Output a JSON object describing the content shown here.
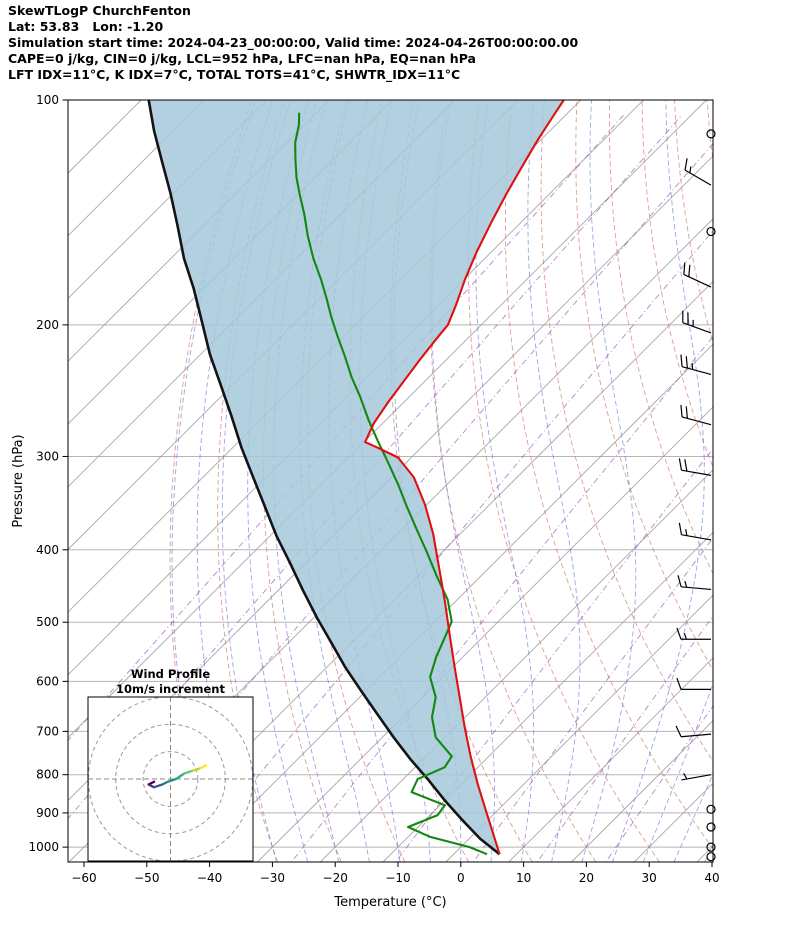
{
  "header": {
    "line1": "SkewTLogP ChurchFenton",
    "line2": "Lat: 53.83   Lon: -1.20",
    "line3": "Simulation start time: 2024-04-23_00:00:00, Valid time: 2024-04-26T00:00:00.00",
    "line4": "CAPE=0 j/kg, CIN=0 j/kg, LCL=952 hPa, LFC=nan hPa, EQ=nan hPa",
    "line5": "LFT IDX=11°C, K IDX=7°C, TOTAL TOTS=41°C, SHWTR_IDX=11°C"
  },
  "chart_data": {
    "type": "line",
    "subtype": "skewt-logp-sounding",
    "title": "SkewTLogP ChurchFenton",
    "xlabel": "Temperature (°C)",
    "ylabel": "Pressure (hPa)",
    "x_ticks": [
      -60,
      -50,
      -40,
      -30,
      -20,
      -10,
      0,
      10,
      20,
      30,
      40
    ],
    "x_tick_labels": [
      "−60",
      "−50",
      "−40",
      "−30",
      "−20",
      "−10",
      "0",
      "10",
      "20",
      "30",
      "40"
    ],
    "p_ticks": [
      100,
      200,
      300,
      400,
      500,
      600,
      700,
      800,
      900,
      1000
    ],
    "p_range": [
      100,
      1047
    ],
    "skew_deg_per_decade": 119.1,
    "isotherm_step": 10,
    "temperature_profile": [
      [
        1022,
        7.3
      ],
      [
        955,
        2.7
      ],
      [
        890,
        -2.1
      ],
      [
        824,
        -7.3
      ],
      [
        756,
        -12.9
      ],
      [
        691,
        -18.5
      ],
      [
        634,
        -23.7
      ],
      [
        575,
        -29.6
      ],
      [
        519,
        -35.7
      ],
      [
        469,
        -41.7
      ],
      [
        422,
        -48.1
      ],
      [
        381,
        -54.3
      ],
      [
        348,
        -60.3
      ],
      [
        320,
        -66.4
      ],
      [
        301,
        -72.1
      ],
      [
        292,
        -76.9
      ],
      [
        287,
        -79.8
      ],
      [
        271,
        -81.4
      ],
      [
        254,
        -82.5
      ],
      [
        237,
        -83.4
      ],
      [
        223,
        -84.2
      ],
      [
        209,
        -84.9
      ],
      [
        200,
        -85.3
      ],
      [
        188,
        -87.2
      ],
      [
        174,
        -89.8
      ],
      [
        160,
        -92.3
      ],
      [
        146,
        -94.7
      ],
      [
        134,
        -96.8
      ],
      [
        123,
        -98.7
      ],
      [
        113,
        -100.5
      ],
      [
        104,
        -102.0
      ],
      [
        100,
        -102.7
      ]
    ],
    "dewpoint_profile": [
      [
        1022,
        5.3
      ],
      [
        1000,
        1.4
      ],
      [
        969,
        -6.5
      ],
      [
        940,
        -11.6
      ],
      [
        906,
        -8.8
      ],
      [
        879,
        -9.2
      ],
      [
        844,
        -16.6
      ],
      [
        811,
        -17.7
      ],
      [
        782,
        -15.3
      ],
      [
        756,
        -15.9
      ],
      [
        713,
        -21.5
      ],
      [
        670,
        -25.3
      ],
      [
        630,
        -27.9
      ],
      [
        592,
        -32.0
      ],
      [
        557,
        -34.2
      ],
      [
        527,
        -35.8
      ],
      [
        499,
        -37.4
      ],
      [
        466,
        -41.6
      ],
      [
        434,
        -47.0
      ],
      [
        403,
        -52.4
      ],
      [
        376,
        -57.6
      ],
      [
        350,
        -62.9
      ],
      [
        327,
        -67.8
      ],
      [
        306,
        -72.8
      ],
      [
        287,
        -77.7
      ],
      [
        268,
        -82.8
      ],
      [
        250,
        -87.7
      ],
      [
        235,
        -92.3
      ],
      [
        220,
        -96.8
      ],
      [
        207,
        -101.1
      ],
      [
        195,
        -105.2
      ],
      [
        185,
        -108.6
      ],
      [
        174,
        -112.7
      ],
      [
        163,
        -117.3
      ],
      [
        152,
        -121.8
      ],
      [
        142,
        -125.9
      ],
      [
        134,
        -129.6
      ],
      [
        127,
        -132.9
      ],
      [
        120,
        -136.0
      ],
      [
        114,
        -138.7
      ],
      [
        108,
        -140.9
      ],
      [
        104,
        -142.8
      ]
    ],
    "parcel_profile": [
      [
        1022,
        7.3
      ],
      [
        975,
        1.8
      ],
      [
        918,
        -4.3
      ],
      [
        864,
        -10.2
      ],
      [
        811,
        -16.1
      ],
      [
        763,
        -22.0
      ],
      [
        713,
        -28.2
      ],
      [
        666,
        -34.2
      ],
      [
        619,
        -40.6
      ],
      [
        575,
        -47.0
      ],
      [
        532,
        -53.3
      ],
      [
        493,
        -59.5
      ],
      [
        453,
        -66.1
      ],
      [
        417,
        -72.4
      ],
      [
        383,
        -79.0
      ],
      [
        351,
        -85.3
      ],
      [
        320,
        -92.0
      ],
      [
        292,
        -98.6
      ],
      [
        265,
        -105.2
      ],
      [
        241,
        -111.8
      ],
      [
        219,
        -118.5
      ],
      [
        198,
        -125.0
      ],
      [
        179,
        -131.5
      ],
      [
        163,
        -137.9
      ],
      [
        147,
        -144.3
      ],
      [
        133,
        -150.6
      ],
      [
        121,
        -156.8
      ],
      [
        110,
        -163.0
      ],
      [
        100,
        -168.8
      ]
    ],
    "wind_barbs": [
      {
        "p": 111,
        "spd": 0,
        "dir": 0
      },
      {
        "p": 130,
        "spd": 15,
        "dir": 300
      },
      {
        "p": 150,
        "spd": 0,
        "dir": 0
      },
      {
        "p": 178,
        "spd": 20,
        "dir": 295
      },
      {
        "p": 205,
        "spd": 25,
        "dir": 290
      },
      {
        "p": 233,
        "spd": 25,
        "dir": 285
      },
      {
        "p": 272,
        "spd": 20,
        "dir": 285
      },
      {
        "p": 318,
        "spd": 20,
        "dir": 280
      },
      {
        "p": 388,
        "spd": 15,
        "dir": 280
      },
      {
        "p": 452,
        "spd": 15,
        "dir": 275
      },
      {
        "p": 527,
        "spd": 15,
        "dir": 270
      },
      {
        "p": 615,
        "spd": 10,
        "dir": 270
      },
      {
        "p": 706,
        "spd": 10,
        "dir": 265
      },
      {
        "p": 800,
        "spd": 5,
        "dir": 260
      },
      {
        "p": 890,
        "spd": 0,
        "dir": 0
      },
      {
        "p": 940,
        "spd": 0,
        "dir": 0
      },
      {
        "p": 1000,
        "spd": 0,
        "dir": 0
      },
      {
        "p": 1030,
        "spd": 0,
        "dir": 0
      }
    ],
    "hodograph": {
      "title_line1": "Wind Profile",
      "title_line2": "10m/s increment",
      "ring_increment_ms": 10,
      "trace": [
        [
          -6,
          -1
        ],
        [
          -8,
          -2
        ],
        [
          -6,
          -3
        ],
        [
          -3,
          -2
        ],
        [
          -1,
          -1
        ],
        [
          2,
          0
        ],
        [
          5,
          2
        ],
        [
          8,
          3
        ],
        [
          11,
          4
        ],
        [
          13,
          5
        ]
      ]
    },
    "colors": {
      "temperature": "#e01010",
      "dewpoint": "#128812",
      "parcel": "#141414",
      "fill": "#a4c8da",
      "isotherm": "#9a9a9a",
      "dry_adiabat": "#cf7272",
      "moist_adiabat": "#7070d8",
      "mixing_ratio": "#9a5fbf",
      "pressure_grid": "#b5b5b5"
    },
    "mixing_ratio_lines_g_kg": [
      0.001,
      0.005,
      0.02,
      0.1,
      0.5,
      2,
      5,
      10,
      20
    ],
    "dry_adiabats_theta_c": {
      "min": -40,
      "max": 160,
      "step": 10
    },
    "moist_adiabats_thetaw_c": {
      "min": -40,
      "max": 40,
      "step": 5
    }
  },
  "axes": {
    "x_label": "Temperature (°C)",
    "y_label": "Pressure (hPa)"
  }
}
